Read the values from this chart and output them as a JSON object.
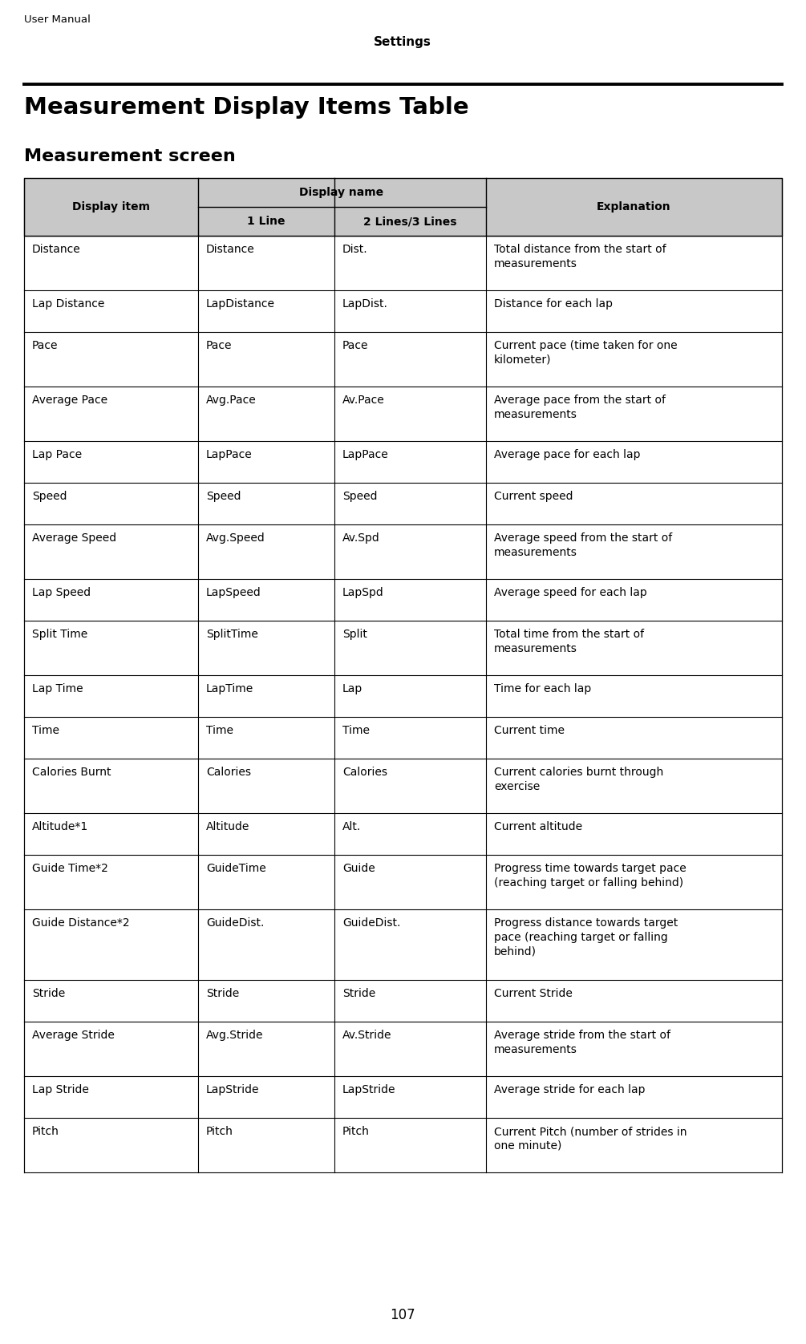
{
  "page_header_left": "User Manual",
  "page_header_center": "Settings",
  "page_title": "Measurement Display Items Table",
  "section_title": "Measurement screen",
  "page_number": "107",
  "header_bg_color": "#c8c8c8",
  "rows": [
    [
      "Distance",
      "Distance",
      "Dist.",
      "Total distance from the start of\nmeasurements"
    ],
    [
      "Lap Distance",
      "LapDistance",
      "LapDist.",
      "Distance for each lap"
    ],
    [
      "Pace",
      "Pace",
      "Pace",
      "Current pace (time taken for one\nkilometer)"
    ],
    [
      "Average Pace",
      "Avg.Pace",
      "Av.Pace",
      "Average pace from the start of\nmeasurements"
    ],
    [
      "Lap Pace",
      "LapPace",
      "LapPace",
      "Average pace for each lap"
    ],
    [
      "Speed",
      "Speed",
      "Speed",
      "Current speed"
    ],
    [
      "Average Speed",
      "Avg.Speed",
      "Av.Spd",
      "Average speed from the start of\nmeasurements"
    ],
    [
      "Lap Speed",
      "LapSpeed",
      "LapSpd",
      "Average speed for each lap"
    ],
    [
      "Split Time",
      "SplitTime",
      "Split",
      "Total time from the start of\nmeasurements"
    ],
    [
      "Lap Time",
      "LapTime",
      "Lap",
      "Time for each lap"
    ],
    [
      "Time",
      "Time",
      "Time",
      "Current time"
    ],
    [
      "Calories Burnt",
      "Calories",
      "Calories",
      "Current calories burnt through\nexercise"
    ],
    [
      "Altitude*1",
      "Altitude",
      "Alt.",
      "Current altitude"
    ],
    [
      "Guide Time*2",
      "GuideTime",
      "Guide",
      "Progress time towards target pace\n(reaching target or falling behind)"
    ],
    [
      "Guide Distance*2",
      "GuideDist.",
      "GuideDist.",
      "Progress distance towards target\npace (reaching target or falling\nbehind)"
    ],
    [
      "Stride",
      "Stride",
      "Stride",
      "Current Stride"
    ],
    [
      "Average Stride",
      "Avg.Stride",
      "Av.Stride",
      "Average stride from the start of\nmeasurements"
    ],
    [
      "Lap Stride",
      "LapStride",
      "LapStride",
      "Average stride for each lap"
    ],
    [
      "Pitch",
      "Pitch",
      "Pitch",
      "Current Pitch (number of strides in\none minute)"
    ]
  ],
  "row_line_counts": [
    2,
    1,
    2,
    2,
    1,
    1,
    2,
    1,
    2,
    1,
    1,
    2,
    1,
    2,
    3,
    1,
    2,
    1,
    2
  ]
}
